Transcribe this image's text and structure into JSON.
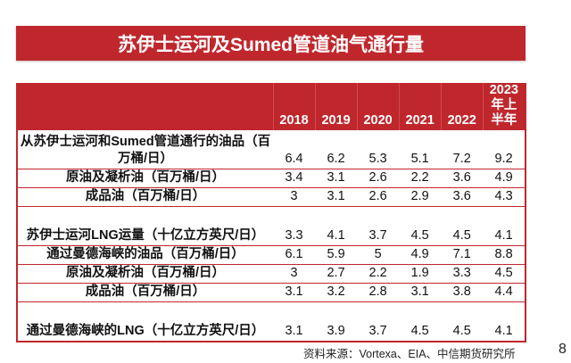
{
  "title": "苏伊士运河及Sumed管道油气通行量",
  "table": {
    "headers": [
      "",
      "2018",
      "2019",
      "2020",
      "2021",
      "2022",
      "2023年上半年"
    ],
    "header_last_lines": [
      "2023",
      "年上",
      "半年"
    ],
    "rows": [
      {
        "label": "从苏伊士运河和Sumed管道通行的油品（百万桶/日）",
        "values": [
          "6.4",
          "6.2",
          "5.3",
          "5.1",
          "7.2",
          "9.2"
        ],
        "two_line": true
      },
      {
        "label": "原油及凝析油（百万桶/日）",
        "values": [
          "3.4",
          "3.1",
          "2.6",
          "2.2",
          "3.6",
          "4.9"
        ],
        "two_line": false
      },
      {
        "label": "成品油（百万桶/日）",
        "values": [
          "3",
          "3.1",
          "2.6",
          "2.9",
          "3.6",
          "4.3"
        ],
        "two_line": false
      },
      {
        "label": "苏伊士运河LNG运量（十亿立方英尺/日）",
        "values": [
          "3.3",
          "4.1",
          "3.7",
          "4.5",
          "4.5",
          "4.1"
        ],
        "two_line": true
      },
      {
        "label": "通过曼德海峡的油品（百万桶/日）",
        "values": [
          "6.1",
          "5.9",
          "5",
          "4.9",
          "7.1",
          "8.8"
        ],
        "two_line": false
      },
      {
        "label": "原油及凝析油（百万桶/日）",
        "values": [
          "3",
          "2.7",
          "2.2",
          "1.9",
          "3.3",
          "4.5"
        ],
        "two_line": false
      },
      {
        "label": "成品油（百万桶/日）",
        "values": [
          "3.1",
          "3.2",
          "2.8",
          "3.1",
          "3.8",
          "4.4"
        ],
        "two_line": false
      },
      {
        "label": "通过曼德海峡的LNG（十亿立方英尺/日）",
        "values": [
          "3.1",
          "3.9",
          "3.7",
          "4.5",
          "4.5",
          "4.1"
        ],
        "two_line": true
      }
    ]
  },
  "source": "资料来源：Vortexa、EIA、中信期货研究所",
  "page_number": "8",
  "colors": {
    "accent": "#c0272d"
  }
}
